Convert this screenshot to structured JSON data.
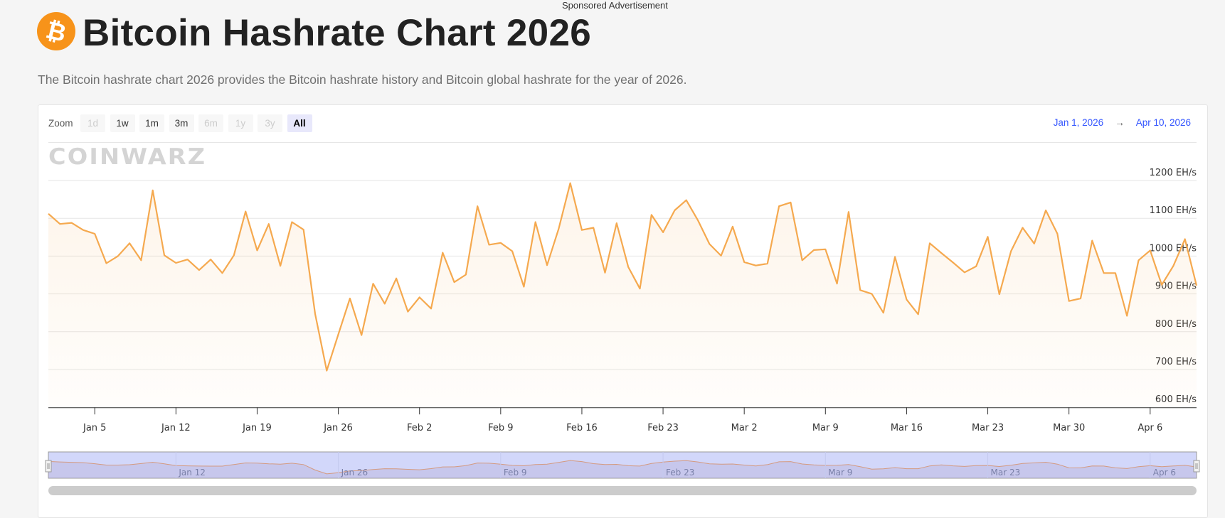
{
  "sponsored": "Sponsored Advertisement",
  "header": {
    "logo_icon": "bitcoin-icon",
    "title": "Bitcoin Hashrate Chart 2026",
    "subtitle": "The Bitcoin hashrate chart 2026 provides the Bitcoin hashrate history and Bitcoin global hashrate for the year of 2026."
  },
  "zoom": {
    "label": "Zoom",
    "buttons": [
      {
        "label": "1d",
        "state": "disabled"
      },
      {
        "label": "1w",
        "state": "enabled"
      },
      {
        "label": "1m",
        "state": "enabled"
      },
      {
        "label": "3m",
        "state": "enabled"
      },
      {
        "label": "6m",
        "state": "disabled"
      },
      {
        "label": "1y",
        "state": "disabled"
      },
      {
        "label": "3y",
        "state": "disabled"
      },
      {
        "label": "All",
        "state": "active"
      }
    ]
  },
  "range": {
    "from": "Jan 1, 2026",
    "arrow": "→",
    "to": "Apr 10, 2026"
  },
  "watermark": "COINWARZ",
  "colors": {
    "line": "#f5a94f",
    "navigator_mask": "#d2d7fa",
    "range_text": "#3355ff"
  },
  "chart_data": {
    "type": "area",
    "title": "",
    "xlabel": "",
    "ylabel": "",
    "y_unit": "EH/s",
    "ylim": [
      600,
      1200
    ],
    "y_ticks": [
      "600 EH/s",
      "700 EH/s",
      "800 EH/s",
      "900 EH/s",
      "1000 EH/s",
      "1100 EH/s",
      "1200 EH/s"
    ],
    "y_tick_values": [
      600,
      700,
      800,
      900,
      1000,
      1100,
      1200
    ],
    "grid": true,
    "x": [
      "2026-01-01",
      "2026-01-02",
      "2026-01-03",
      "2026-01-04",
      "2026-01-05",
      "2026-01-06",
      "2026-01-07",
      "2026-01-08",
      "2026-01-09",
      "2026-01-10",
      "2026-01-11",
      "2026-01-12",
      "2026-01-13",
      "2026-01-14",
      "2026-01-15",
      "2026-01-16",
      "2026-01-17",
      "2026-01-18",
      "2026-01-19",
      "2026-01-20",
      "2026-01-21",
      "2026-01-22",
      "2026-01-23",
      "2026-01-24",
      "2026-01-25",
      "2026-01-26",
      "2026-01-27",
      "2026-01-28",
      "2026-01-29",
      "2026-01-30",
      "2026-01-31",
      "2026-02-01",
      "2026-02-02",
      "2026-02-03",
      "2026-02-04",
      "2026-02-05",
      "2026-02-06",
      "2026-02-07",
      "2026-02-08",
      "2026-02-09",
      "2026-02-10",
      "2026-02-11",
      "2026-02-12",
      "2026-02-13",
      "2026-02-14",
      "2026-02-15",
      "2026-02-16",
      "2026-02-17",
      "2026-02-18",
      "2026-02-19",
      "2026-02-20",
      "2026-02-21",
      "2026-02-22",
      "2026-02-23",
      "2026-02-24",
      "2026-02-25",
      "2026-02-26",
      "2026-02-27",
      "2026-02-28",
      "2026-03-01",
      "2026-03-02",
      "2026-03-03",
      "2026-03-04",
      "2026-03-05",
      "2026-03-06",
      "2026-03-07",
      "2026-03-08",
      "2026-03-09",
      "2026-03-10",
      "2026-03-11",
      "2026-03-12",
      "2026-03-13",
      "2026-03-14",
      "2026-03-15",
      "2026-03-16",
      "2026-03-17",
      "2026-03-18",
      "2026-03-19",
      "2026-03-20",
      "2026-03-21",
      "2026-03-22",
      "2026-03-23",
      "2026-03-24",
      "2026-03-25",
      "2026-03-26",
      "2026-03-27",
      "2026-03-28",
      "2026-03-29",
      "2026-03-30",
      "2026-03-31",
      "2026-04-01",
      "2026-04-02",
      "2026-04-03",
      "2026-04-04",
      "2026-04-05",
      "2026-04-06",
      "2026-04-07",
      "2026-04-08",
      "2026-04-09",
      "2026-04-10"
    ],
    "series": [
      {
        "values": [
          1112,
          1085,
          1088,
          1069,
          1059,
          981,
          1000,
          1034,
          989,
          1174,
          1002,
          982,
          991,
          963,
          991,
          955,
          1002,
          1118,
          1015,
          1085,
          974,
          1090,
          1070,
          847,
          697,
          793,
          888,
          791,
          927,
          874,
          941,
          853,
          891,
          861,
          1009,
          931,
          951,
          1132,
          1030,
          1035,
          1013,
          919,
          1090,
          976,
          1072,
          1193,
          1069,
          1075,
          956,
          1087,
          971,
          914,
          1109,
          1063,
          1121,
          1148,
          1095,
          1032,
          1001,
          1078,
          984,
          975,
          980,
          1132,
          1142,
          989,
          1016,
          1018,
          927,
          1117,
          910,
          900,
          850,
          998,
          885,
          846,
          1034,
          1008,
          983,
          957,
          973,
          1051,
          899,
          1013,
          1075,
          1033,
          1121,
          1059,
          881,
          888,
          1041,
          955,
          955,
          842,
          989,
          1015,
          924,
          974,
          1045,
          922
        ]
      }
    ],
    "x_ticks": [
      {
        "label": "Jan 5",
        "date": "2026-01-05"
      },
      {
        "label": "Jan 12",
        "date": "2026-01-12"
      },
      {
        "label": "Jan 19",
        "date": "2026-01-19"
      },
      {
        "label": "Jan 26",
        "date": "2026-01-26"
      },
      {
        "label": "Feb 2",
        "date": "2026-02-02"
      },
      {
        "label": "Feb 9",
        "date": "2026-02-09"
      },
      {
        "label": "Feb 16",
        "date": "2026-02-16"
      },
      {
        "label": "Feb 23",
        "date": "2026-02-23"
      },
      {
        "label": "Mar 2",
        "date": "2026-03-02"
      },
      {
        "label": "Mar 9",
        "date": "2026-03-09"
      },
      {
        "label": "Mar 16",
        "date": "2026-03-16"
      },
      {
        "label": "Mar 23",
        "date": "2026-03-23"
      },
      {
        "label": "Mar 30",
        "date": "2026-03-30"
      },
      {
        "label": "Apr 6",
        "date": "2026-04-06"
      }
    ],
    "navigator_ticks": [
      {
        "label": "Jan 12",
        "date": "2026-01-12"
      },
      {
        "label": "Jan 26",
        "date": "2026-01-26"
      },
      {
        "label": "Feb 9",
        "date": "2026-02-09"
      },
      {
        "label": "Feb 23",
        "date": "2026-02-23"
      },
      {
        "label": "Mar 9",
        "date": "2026-03-09"
      },
      {
        "label": "Mar 23",
        "date": "2026-03-23"
      },
      {
        "label": "Apr 6",
        "date": "2026-04-06"
      }
    ],
    "legend": "none"
  }
}
